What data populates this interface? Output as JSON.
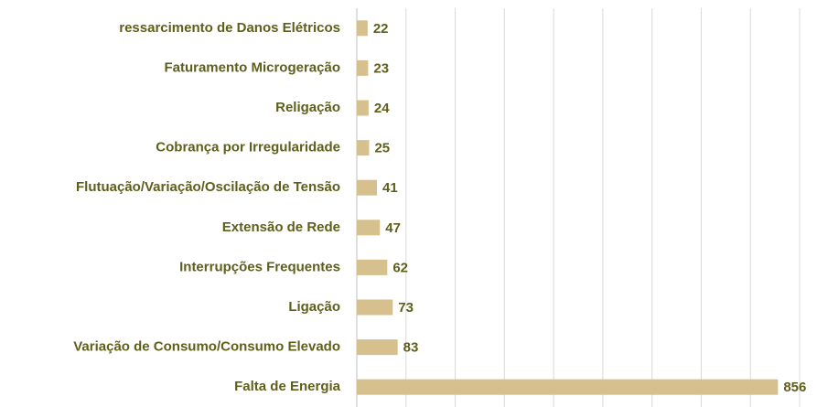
{
  "chart_data": {
    "type": "bar",
    "orientation": "horizontal",
    "categories": [
      "ressarcimento de Danos Elétricos",
      "Faturamento Microgeração",
      "Religação",
      "Cobrança por Irregularidade",
      "Flutuação/Variação/Oscilação de Tensão",
      "Extensão de Rede",
      "Interrupções Frequentes",
      "Ligação",
      "Variação de Consumo/Consumo Elevado",
      "Falta de Energia"
    ],
    "values": [
      22,
      23,
      24,
      25,
      41,
      47,
      62,
      73,
      83,
      856
    ],
    "color": "#d5c08e",
    "xlim": [
      0,
      900
    ],
    "xticks": [
      0,
      100,
      200,
      300,
      400,
      500,
      600,
      700,
      800,
      900
    ],
    "grid": true
  }
}
